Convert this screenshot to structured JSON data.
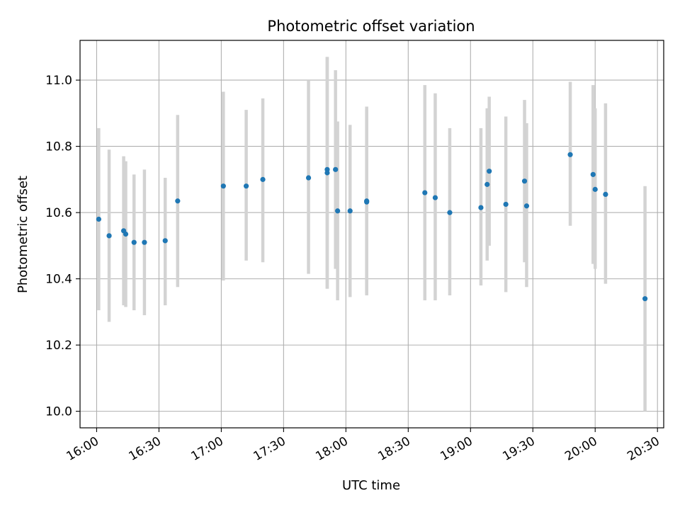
{
  "chart_data": {
    "type": "scatter",
    "title": "Photometric offset variation",
    "xlabel": "UTC time",
    "ylabel": "Photometric offset",
    "grid": true,
    "xlim": [
      "15:52",
      "20:33"
    ],
    "ylim": [
      9.95,
      11.12
    ],
    "x_ticks": [
      "16:00",
      "16:30",
      "17:00",
      "17:30",
      "18:00",
      "18:30",
      "19:00",
      "19:30",
      "20:00",
      "20:30"
    ],
    "y_ticks": [
      "10.0",
      "10.2",
      "10.4",
      "10.6",
      "10.8",
      "11.0"
    ],
    "colors": {
      "point": "#1f77b4",
      "error_bar": "#d3d3d3",
      "grid": "#b0b0b0"
    },
    "points": [
      {
        "x": "16:01",
        "y": 10.58,
        "y_low": 10.305,
        "y_high": 10.855
      },
      {
        "x": "16:06",
        "y": 10.53,
        "y_low": 10.27,
        "y_high": 10.79
      },
      {
        "x": "16:13",
        "y": 10.545,
        "y_low": 10.32,
        "y_high": 10.77
      },
      {
        "x": "16:14",
        "y": 10.535,
        "y_low": 10.315,
        "y_high": 10.755
      },
      {
        "x": "16:18",
        "y": 10.51,
        "y_low": 10.305,
        "y_high": 10.715
      },
      {
        "x": "16:23",
        "y": 10.51,
        "y_low": 10.29,
        "y_high": 10.73
      },
      {
        "x": "16:33",
        "y": 10.515,
        "y_low": 10.32,
        "y_high": 10.705
      },
      {
        "x": "16:39",
        "y": 10.635,
        "y_low": 10.375,
        "y_high": 10.895
      },
      {
        "x": "17:01",
        "y": 10.68,
        "y_low": 10.395,
        "y_high": 10.965
      },
      {
        "x": "17:12",
        "y": 10.68,
        "y_low": 10.455,
        "y_high": 10.91
      },
      {
        "x": "17:20",
        "y": 10.7,
        "y_low": 10.45,
        "y_high": 10.945
      },
      {
        "x": "17:42",
        "y": 10.705,
        "y_low": 10.415,
        "y_high": 11.0
      },
      {
        "x": "17:51",
        "y": 10.73,
        "y_low": 10.37,
        "y_high": 11.07
      },
      {
        "x": "17:51",
        "y": 10.72,
        "y_low": 10.37,
        "y_high": 11.07
      },
      {
        "x": "17:55",
        "y": 10.73,
        "y_low": 10.43,
        "y_high": 11.03
      },
      {
        "x": "17:56",
        "y": 10.605,
        "y_low": 10.335,
        "y_high": 10.875
      },
      {
        "x": "18:02",
        "y": 10.605,
        "y_low": 10.345,
        "y_high": 10.865
      },
      {
        "x": "18:10",
        "y": 10.635,
        "y_low": 10.35,
        "y_high": 10.92
      },
      {
        "x": "18:10",
        "y": 10.632,
        "y_low": 10.355,
        "y_high": 10.91
      },
      {
        "x": "18:38",
        "y": 10.66,
        "y_low": 10.335,
        "y_high": 10.985
      },
      {
        "x": "18:43",
        "y": 10.645,
        "y_low": 10.335,
        "y_high": 10.96
      },
      {
        "x": "18:50",
        "y": 10.6,
        "y_low": 10.35,
        "y_high": 10.855
      },
      {
        "x": "19:05",
        "y": 10.615,
        "y_low": 10.38,
        "y_high": 10.855
      },
      {
        "x": "19:08",
        "y": 10.685,
        "y_low": 10.455,
        "y_high": 10.915
      },
      {
        "x": "19:09",
        "y": 10.725,
        "y_low": 10.5,
        "y_high": 10.95
      },
      {
        "x": "19:17",
        "y": 10.625,
        "y_low": 10.36,
        "y_high": 10.89
      },
      {
        "x": "19:26",
        "y": 10.695,
        "y_low": 10.45,
        "y_high": 10.94
      },
      {
        "x": "19:27",
        "y": 10.62,
        "y_low": 10.375,
        "y_high": 10.87
      },
      {
        "x": "19:48",
        "y": 10.775,
        "y_low": 10.56,
        "y_high": 10.995
      },
      {
        "x": "19:59",
        "y": 10.715,
        "y_low": 10.445,
        "y_high": 10.985
      },
      {
        "x": "20:00",
        "y": 10.67,
        "y_low": 10.43,
        "y_high": 10.915
      },
      {
        "x": "20:05",
        "y": 10.655,
        "y_low": 10.385,
        "y_high": 10.93
      },
      {
        "x": "20:24",
        "y": 10.34,
        "y_low": 10.0,
        "y_high": 10.68
      }
    ]
  }
}
